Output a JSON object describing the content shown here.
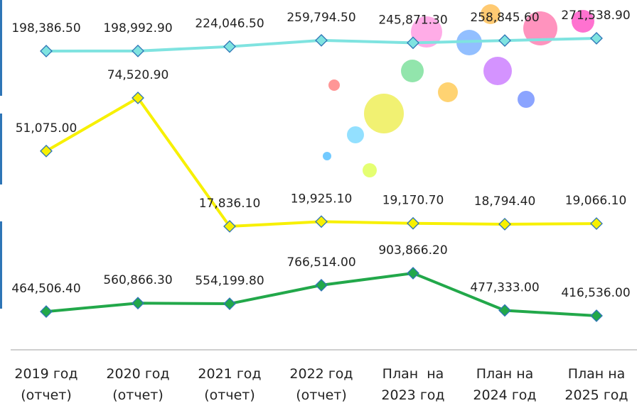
{
  "chart_data": {
    "type": "line",
    "categories": [
      "2019 год (отчет)",
      "2020 год (отчет)",
      "2021 год (отчет)",
      "2022 год (отчет)",
      "План  на 2023 год",
      "План на 2024 год",
      "План на 2025 год"
    ],
    "series": [
      {
        "color": "#7fe3e0",
        "values": [
          198386.5,
          198992.9,
          224046.5,
          259794.5,
          245871.3,
          258845.6,
          271538.9
        ],
        "value_labels": [
          "198,386.50",
          "198,992.90",
          "224,046.50",
          "259,794.50",
          "245,871.30",
          "258,845.60",
          "271,538.90"
        ]
      },
      {
        "color": "#f7f000",
        "values": [
          51075,
          74520.9,
          17836.1,
          19925.1,
          19170.7,
          18794.4,
          19066.1
        ],
        "value_labels": [
          "51,075.00",
          "74,520.90",
          "17,836.10",
          "19,925.10",
          "19,170.70",
          "18,794.40",
          "19,066.10"
        ]
      },
      {
        "color": "#22a84a",
        "values": [
          464506.4,
          560866.3,
          554199.8,
          766514,
          903866.2,
          477333,
          416536
        ],
        "value_labels": [
          "464,506.40",
          "560,866.30",
          "554,199.80",
          "766,514.00",
          "903,866.20",
          "477,333.00",
          "416,536.00"
        ]
      }
    ]
  }
}
